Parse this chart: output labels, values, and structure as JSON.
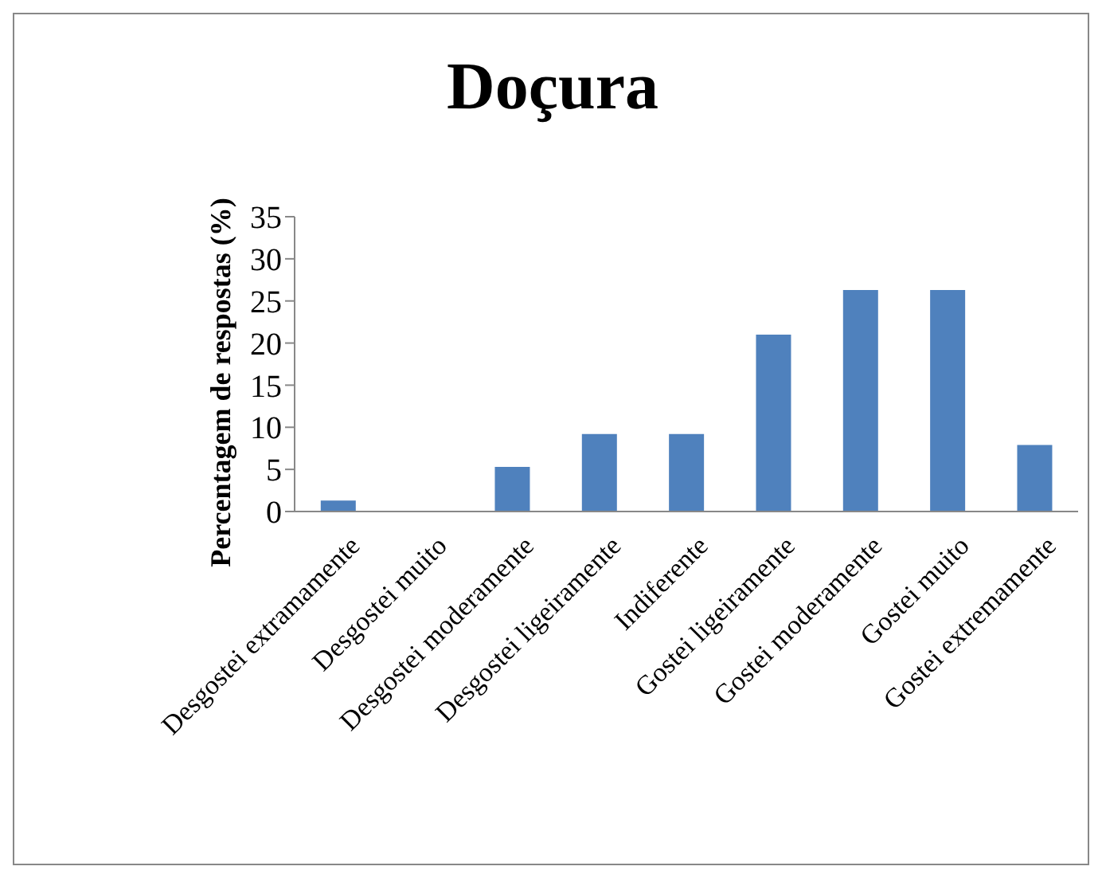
{
  "chart_data": {
    "type": "bar",
    "title": "Doçura",
    "ylabel": "Percentagem de respostas (%)",
    "categories": [
      "Desgostei extramamente",
      "Desgostei muito",
      "Desgostei moderamente",
      "Desgostei ligeiramente",
      "Indiferente",
      "Gostei ligeiramente",
      "Gostei moderamente",
      "Gostei muito",
      "Gostei extremamente"
    ],
    "values": [
      1.3,
      0,
      5.3,
      9.2,
      9.2,
      21,
      26.3,
      26.3,
      7.9
    ],
    "color": "#4f81bd",
    "ylim": [
      0,
      35
    ],
    "yticks": [
      0,
      5,
      10,
      15,
      20,
      25,
      30,
      35
    ],
    "grid": false,
    "legend": false
  }
}
